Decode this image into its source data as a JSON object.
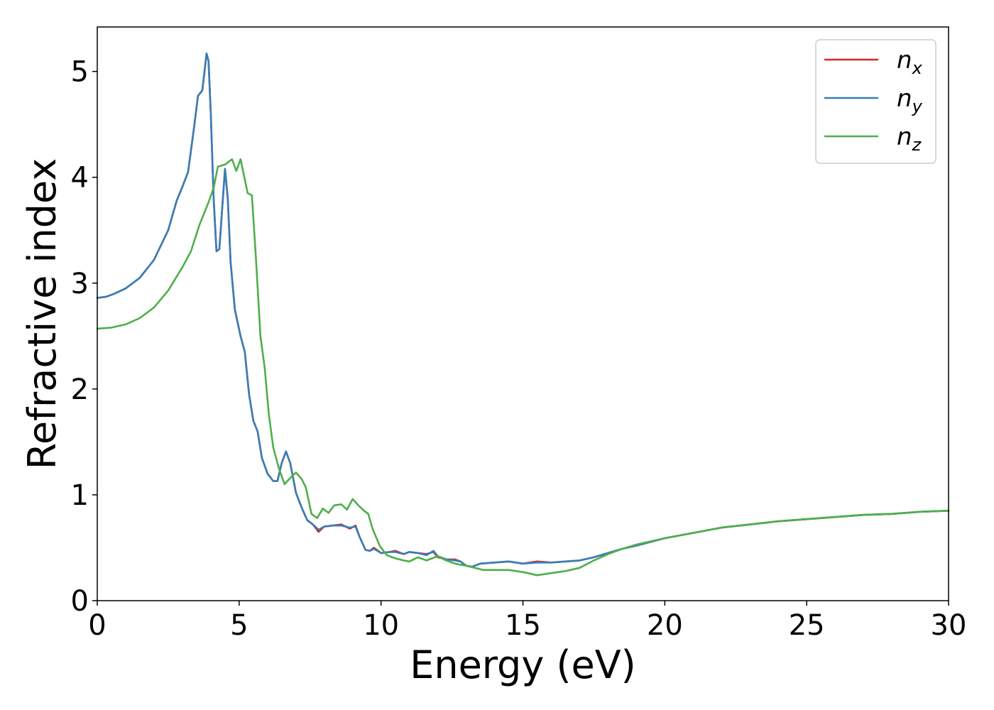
{
  "chart_data": {
    "type": "line",
    "title": "",
    "xlabel": "Energy (eV)",
    "ylabel": "Refractive index",
    "xlim": [
      0,
      30
    ],
    "ylim": [
      0,
      5.42
    ],
    "xticks": [
      0,
      5,
      10,
      15,
      20,
      25,
      30
    ],
    "xtick_labels": [
      "0",
      "5",
      "10",
      "15",
      "20",
      "25",
      "30"
    ],
    "yticks": [
      0,
      1,
      2,
      3,
      4,
      5
    ],
    "ytick_labels": [
      "0",
      "1",
      "2",
      "3",
      "4",
      "5"
    ],
    "grid": false,
    "legend_position": "top-right",
    "series": [
      {
        "name": "n_x",
        "label_main": "n",
        "label_sub": "x",
        "color": "#d62728",
        "points": [
          [
            0,
            2.86
          ],
          [
            0.3,
            2.87
          ],
          [
            0.6,
            2.9
          ],
          [
            1,
            2.95
          ],
          [
            1.5,
            3.05
          ],
          [
            2,
            3.22
          ],
          [
            2.5,
            3.5
          ],
          [
            2.8,
            3.78
          ],
          [
            3,
            3.91
          ],
          [
            3.2,
            4.05
          ],
          [
            3.4,
            4.45
          ],
          [
            3.55,
            4.77
          ],
          [
            3.7,
            4.82
          ],
          [
            3.8,
            5.05
          ],
          [
            3.85,
            5.17
          ],
          [
            3.92,
            5.1
          ],
          [
            4.0,
            4.6
          ],
          [
            4.1,
            3.8
          ],
          [
            4.2,
            3.3
          ],
          [
            4.3,
            3.32
          ],
          [
            4.4,
            3.7
          ],
          [
            4.5,
            4.08
          ],
          [
            4.6,
            3.8
          ],
          [
            4.7,
            3.2
          ],
          [
            4.85,
            2.75
          ],
          [
            5.05,
            2.5
          ],
          [
            5.2,
            2.35
          ],
          [
            5.35,
            1.95
          ],
          [
            5.5,
            1.7
          ],
          [
            5.65,
            1.6
          ],
          [
            5.8,
            1.35
          ],
          [
            6.0,
            1.2
          ],
          [
            6.2,
            1.13
          ],
          [
            6.35,
            1.13
          ],
          [
            6.5,
            1.3
          ],
          [
            6.65,
            1.41
          ],
          [
            6.8,
            1.3
          ],
          [
            7.0,
            1.02
          ],
          [
            7.2,
            0.88
          ],
          [
            7.4,
            0.76
          ],
          [
            7.6,
            0.72
          ],
          [
            7.8,
            0.65
          ],
          [
            8.0,
            0.7
          ],
          [
            8.3,
            0.71
          ],
          [
            8.6,
            0.72
          ],
          [
            8.9,
            0.68
          ],
          [
            9.1,
            0.71
          ],
          [
            9.25,
            0.6
          ],
          [
            9.45,
            0.48
          ],
          [
            9.6,
            0.47
          ],
          [
            9.75,
            0.5
          ],
          [
            10.0,
            0.45
          ],
          [
            10.3,
            0.46
          ],
          [
            10.5,
            0.47
          ],
          [
            10.8,
            0.44
          ],
          [
            11.0,
            0.46
          ],
          [
            11.3,
            0.45
          ],
          [
            11.6,
            0.44
          ],
          [
            11.85,
            0.46
          ],
          [
            12.0,
            0.41
          ],
          [
            12.3,
            0.39
          ],
          [
            12.6,
            0.39
          ],
          [
            12.8,
            0.37
          ],
          [
            13.0,
            0.33
          ],
          [
            13.2,
            0.32
          ],
          [
            13.5,
            0.35
          ],
          [
            14.0,
            0.36
          ],
          [
            14.5,
            0.37
          ],
          [
            15.0,
            0.35
          ],
          [
            15.5,
            0.37
          ],
          [
            16.0,
            0.36
          ],
          [
            16.5,
            0.37
          ],
          [
            17.0,
            0.38
          ],
          [
            17.5,
            0.41
          ],
          [
            18.0,
            0.45
          ],
          [
            18.5,
            0.49
          ],
          [
            19.0,
            0.52
          ],
          [
            20.0,
            0.59
          ],
          [
            21.0,
            0.64
          ],
          [
            22.0,
            0.69
          ],
          [
            23.0,
            0.72
          ],
          [
            24.0,
            0.75
          ],
          [
            25.0,
            0.77
          ],
          [
            26.0,
            0.79
          ],
          [
            27.0,
            0.81
          ],
          [
            28.0,
            0.82
          ],
          [
            29.0,
            0.84
          ],
          [
            30.0,
            0.85
          ]
        ]
      },
      {
        "name": "n_y",
        "label_main": "n",
        "label_sub": "y",
        "color": "#377eb8",
        "points": [
          [
            0,
            2.86
          ],
          [
            0.3,
            2.87
          ],
          [
            0.6,
            2.9
          ],
          [
            1,
            2.95
          ],
          [
            1.5,
            3.05
          ],
          [
            2,
            3.22
          ],
          [
            2.5,
            3.5
          ],
          [
            2.8,
            3.78
          ],
          [
            3,
            3.91
          ],
          [
            3.2,
            4.05
          ],
          [
            3.4,
            4.45
          ],
          [
            3.55,
            4.77
          ],
          [
            3.7,
            4.82
          ],
          [
            3.8,
            5.05
          ],
          [
            3.85,
            5.17
          ],
          [
            3.92,
            5.1
          ],
          [
            4.0,
            4.6
          ],
          [
            4.1,
            3.8
          ],
          [
            4.2,
            3.3
          ],
          [
            4.3,
            3.32
          ],
          [
            4.4,
            3.7
          ],
          [
            4.5,
            4.08
          ],
          [
            4.6,
            3.8
          ],
          [
            4.7,
            3.2
          ],
          [
            4.85,
            2.75
          ],
          [
            5.05,
            2.5
          ],
          [
            5.2,
            2.35
          ],
          [
            5.35,
            1.95
          ],
          [
            5.5,
            1.7
          ],
          [
            5.65,
            1.6
          ],
          [
            5.8,
            1.35
          ],
          [
            6.0,
            1.2
          ],
          [
            6.2,
            1.13
          ],
          [
            6.35,
            1.13
          ],
          [
            6.5,
            1.3
          ],
          [
            6.65,
            1.41
          ],
          [
            6.8,
            1.3
          ],
          [
            7.0,
            1.02
          ],
          [
            7.2,
            0.88
          ],
          [
            7.4,
            0.76
          ],
          [
            7.6,
            0.72
          ],
          [
            7.8,
            0.67
          ],
          [
            8.0,
            0.7
          ],
          [
            8.3,
            0.71
          ],
          [
            8.6,
            0.71
          ],
          [
            8.9,
            0.69
          ],
          [
            9.1,
            0.7
          ],
          [
            9.25,
            0.6
          ],
          [
            9.45,
            0.48
          ],
          [
            9.6,
            0.47
          ],
          [
            9.75,
            0.49
          ],
          [
            10.0,
            0.45
          ],
          [
            10.3,
            0.46
          ],
          [
            10.5,
            0.46
          ],
          [
            10.8,
            0.44
          ],
          [
            11.0,
            0.46
          ],
          [
            11.3,
            0.45
          ],
          [
            11.6,
            0.43
          ],
          [
            11.85,
            0.47
          ],
          [
            12.0,
            0.42
          ],
          [
            12.3,
            0.39
          ],
          [
            12.6,
            0.38
          ],
          [
            12.8,
            0.37
          ],
          [
            13.0,
            0.33
          ],
          [
            13.2,
            0.32
          ],
          [
            13.5,
            0.35
          ],
          [
            14.0,
            0.36
          ],
          [
            14.5,
            0.37
          ],
          [
            15.0,
            0.35
          ],
          [
            15.5,
            0.36
          ],
          [
            16.0,
            0.36
          ],
          [
            16.5,
            0.37
          ],
          [
            17.0,
            0.38
          ],
          [
            17.5,
            0.41
          ],
          [
            18.0,
            0.45
          ],
          [
            18.5,
            0.49
          ],
          [
            19.0,
            0.52
          ],
          [
            20.0,
            0.59
          ],
          [
            21.0,
            0.64
          ],
          [
            22.0,
            0.69
          ],
          [
            23.0,
            0.72
          ],
          [
            24.0,
            0.75
          ],
          [
            25.0,
            0.77
          ],
          [
            26.0,
            0.79
          ],
          [
            27.0,
            0.81
          ],
          [
            28.0,
            0.82
          ],
          [
            29.0,
            0.84
          ],
          [
            30.0,
            0.85
          ]
        ]
      },
      {
        "name": "n_z",
        "label_main": "n",
        "label_sub": "z",
        "color": "#4daf4a",
        "points": [
          [
            0,
            2.57
          ],
          [
            0.5,
            2.58
          ],
          [
            1,
            2.61
          ],
          [
            1.5,
            2.67
          ],
          [
            2,
            2.77
          ],
          [
            2.5,
            2.93
          ],
          [
            3,
            3.15
          ],
          [
            3.3,
            3.3
          ],
          [
            3.6,
            3.55
          ],
          [
            3.9,
            3.75
          ],
          [
            4.1,
            3.9
          ],
          [
            4.25,
            4.1
          ],
          [
            4.5,
            4.12
          ],
          [
            4.75,
            4.17
          ],
          [
            4.9,
            4.06
          ],
          [
            5.05,
            4.17
          ],
          [
            5.2,
            3.98
          ],
          [
            5.3,
            3.85
          ],
          [
            5.45,
            3.83
          ],
          [
            5.6,
            3.2
          ],
          [
            5.75,
            2.5
          ],
          [
            5.9,
            2.2
          ],
          [
            6.05,
            1.75
          ],
          [
            6.2,
            1.45
          ],
          [
            6.4,
            1.25
          ],
          [
            6.6,
            1.1
          ],
          [
            6.8,
            1.16
          ],
          [
            7.0,
            1.21
          ],
          [
            7.2,
            1.15
          ],
          [
            7.35,
            1.07
          ],
          [
            7.55,
            0.82
          ],
          [
            7.75,
            0.78
          ],
          [
            7.95,
            0.87
          ],
          [
            8.15,
            0.83
          ],
          [
            8.35,
            0.9
          ],
          [
            8.6,
            0.91
          ],
          [
            8.8,
            0.86
          ],
          [
            9.0,
            0.96
          ],
          [
            9.2,
            0.9
          ],
          [
            9.4,
            0.85
          ],
          [
            9.55,
            0.82
          ],
          [
            9.7,
            0.68
          ],
          [
            9.95,
            0.52
          ],
          [
            10.2,
            0.43
          ],
          [
            10.5,
            0.4
          ],
          [
            10.8,
            0.38
          ],
          [
            11.0,
            0.37
          ],
          [
            11.3,
            0.41
          ],
          [
            11.6,
            0.38
          ],
          [
            12.0,
            0.42
          ],
          [
            12.3,
            0.38
          ],
          [
            12.6,
            0.35
          ],
          [
            13.0,
            0.33
          ],
          [
            13.3,
            0.31
          ],
          [
            13.6,
            0.29
          ],
          [
            14.0,
            0.29
          ],
          [
            14.5,
            0.29
          ],
          [
            15.0,
            0.27
          ],
          [
            15.5,
            0.24
          ],
          [
            16.0,
            0.26
          ],
          [
            16.5,
            0.28
          ],
          [
            17.0,
            0.31
          ],
          [
            17.5,
            0.38
          ],
          [
            18.0,
            0.44
          ],
          [
            18.5,
            0.49
          ],
          [
            19.0,
            0.53
          ],
          [
            20.0,
            0.59
          ],
          [
            21.0,
            0.64
          ],
          [
            22.0,
            0.69
          ],
          [
            23.0,
            0.72
          ],
          [
            24.0,
            0.75
          ],
          [
            25.0,
            0.77
          ],
          [
            26.0,
            0.79
          ],
          [
            27.0,
            0.81
          ],
          [
            28.0,
            0.82
          ],
          [
            29.0,
            0.84
          ],
          [
            30.0,
            0.85
          ]
        ]
      }
    ]
  }
}
